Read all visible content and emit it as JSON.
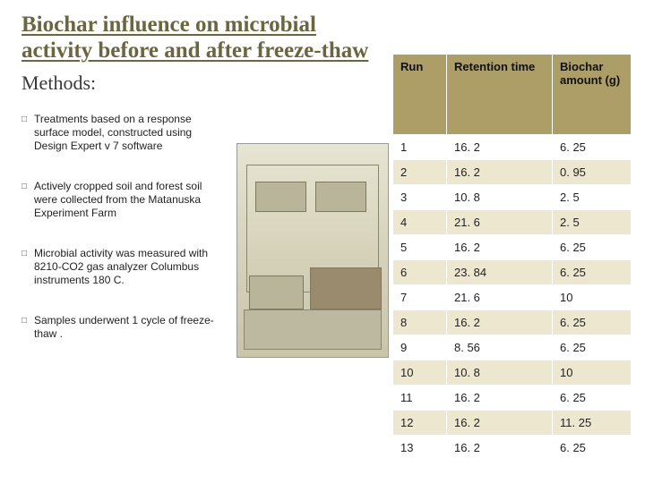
{
  "title": "Biochar influence on microbial activity before and after freeze-thaw",
  "methods_label": "Methods:",
  "bullets": [
    "Treatments based on a response surface model, constructed using Design Expert v 7 software",
    "Actively cropped soil and forest soil were collected from the  Matanuska Experiment Farm",
    "Microbial activity was measured with 8210-CO2 gas analyzer Columbus instruments 180 C.",
    "Samples  underwent 1 cycle of freeze-thaw ."
  ],
  "table": {
    "columns": [
      "Run",
      "Retention time",
      "Biochar amount (g)"
    ],
    "rows": [
      [
        "1",
        "16. 2",
        "6. 25"
      ],
      [
        "2",
        "16. 2",
        "0. 95"
      ],
      [
        "3",
        "10. 8",
        "2. 5"
      ],
      [
        "4",
        "21. 6",
        "2. 5"
      ],
      [
        "5",
        "16. 2",
        "6. 25"
      ],
      [
        "6",
        "23. 84",
        "6. 25"
      ],
      [
        "7",
        "21. 6",
        "10"
      ],
      [
        "8",
        "16. 2",
        "6. 25"
      ],
      [
        "9",
        "8. 56",
        "6. 25"
      ],
      [
        "10",
        "10. 8",
        "10"
      ],
      [
        "11",
        "16. 2",
        "6. 25"
      ],
      [
        "12",
        "16. 2",
        "11. 25"
      ],
      [
        "13",
        "16. 2",
        "6. 25"
      ]
    ],
    "header_bg": "#ac9e66",
    "row_even_bg": "#eee7cf",
    "row_odd_bg": "#ffffff",
    "font_size": 13
  },
  "colors": {
    "title": "#6b6640",
    "text": "#222222",
    "background": "#ffffff"
  }
}
